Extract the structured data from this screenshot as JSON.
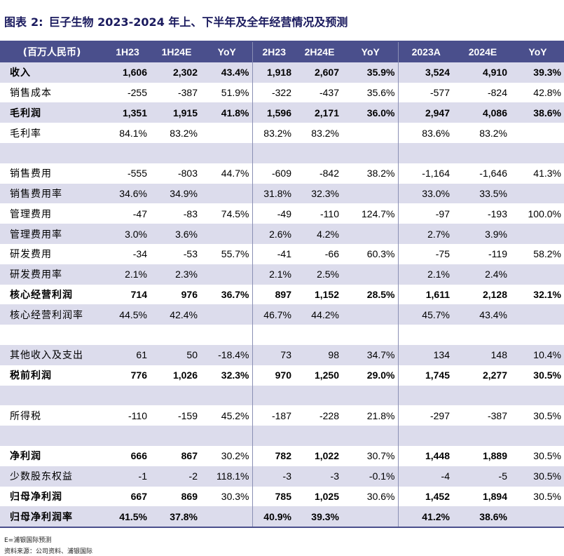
{
  "title": {
    "fig_label": "图表",
    "fig_num": "2:",
    "text": "巨子生物 2023-2024 年上、下半年及全年经营情况及预测"
  },
  "table": {
    "headers": [
      "(百万人民币)",
      "1H23",
      "1H24E",
      "YoY",
      "2H23",
      "2H24E",
      "YoY",
      "2023A",
      "2024E",
      "YoY"
    ],
    "rows": [
      {
        "label": "收入",
        "bold": true,
        "shade": true,
        "cells": [
          "1,606",
          "2,302",
          "43.4%",
          "1,918",
          "2,607",
          "35.9%",
          "3,524",
          "4,910",
          "39.3%"
        ]
      },
      {
        "label": "销售成本",
        "bold": false,
        "shade": false,
        "cells": [
          "-255",
          "-387",
          "51.9%",
          "-322",
          "-437",
          "35.6%",
          "-577",
          "-824",
          "42.8%"
        ]
      },
      {
        "label": "毛利润",
        "bold": true,
        "shade": true,
        "cells": [
          "1,351",
          "1,915",
          "41.8%",
          "1,596",
          "2,171",
          "36.0%",
          "2,947",
          "4,086",
          "38.6%"
        ]
      },
      {
        "label": "毛利率",
        "bold": false,
        "shade": false,
        "cells": [
          "84.1%",
          "83.2%",
          "",
          "83.2%",
          "83.2%",
          "",
          "83.6%",
          "83.2%",
          ""
        ]
      },
      {
        "label": "",
        "bold": false,
        "shade": true,
        "cells": [
          "",
          "",
          "",
          "",
          "",
          "",
          "",
          "",
          ""
        ]
      },
      {
        "label": "销售费用",
        "bold": false,
        "shade": false,
        "cells": [
          "-555",
          "-803",
          "44.7%",
          "-609",
          "-842",
          "38.2%",
          "-1,164",
          "-1,646",
          "41.3%"
        ]
      },
      {
        "label": "销售费用率",
        "bold": false,
        "shade": true,
        "cells": [
          "34.6%",
          "34.9%",
          "",
          "31.8%",
          "32.3%",
          "",
          "33.0%",
          "33.5%",
          ""
        ]
      },
      {
        "label": "管理费用",
        "bold": false,
        "shade": false,
        "cells": [
          "-47",
          "-83",
          "74.5%",
          "-49",
          "-110",
          "124.7%",
          "-97",
          "-193",
          "100.0%"
        ]
      },
      {
        "label": "管理费用率",
        "bold": false,
        "shade": true,
        "cells": [
          "3.0%",
          "3.6%",
          "",
          "2.6%",
          "4.2%",
          "",
          "2.7%",
          "3.9%",
          ""
        ]
      },
      {
        "label": "研发费用",
        "bold": false,
        "shade": false,
        "cells": [
          "-34",
          "-53",
          "55.7%",
          "-41",
          "-66",
          "60.3%",
          "-75",
          "-119",
          "58.2%"
        ]
      },
      {
        "label": "研发费用率",
        "bold": false,
        "shade": true,
        "cells": [
          "2.1%",
          "2.3%",
          "",
          "2.1%",
          "2.5%",
          "",
          "2.1%",
          "2.4%",
          ""
        ]
      },
      {
        "label": "核心经营利润",
        "bold": true,
        "shade": false,
        "cells": [
          "714",
          "976",
          "36.7%",
          "897",
          "1,152",
          "28.5%",
          "1,611",
          "2,128",
          "32.1%"
        ]
      },
      {
        "label": "核心经营利润率",
        "bold": false,
        "shade": true,
        "cells": [
          "44.5%",
          "42.4%",
          "",
          "46.7%",
          "44.2%",
          "",
          "45.7%",
          "43.4%",
          ""
        ]
      },
      {
        "label": "",
        "bold": false,
        "shade": false,
        "cells": [
          "",
          "",
          "",
          "",
          "",
          "",
          "",
          "",
          ""
        ]
      },
      {
        "label": "其他收入及支出",
        "bold": false,
        "shade": true,
        "cells": [
          "61",
          "50",
          "-18.4%",
          "73",
          "98",
          "34.7%",
          "134",
          "148",
          "10.4%"
        ]
      },
      {
        "label": "税前利润",
        "bold": true,
        "shade": false,
        "cells": [
          "776",
          "1,026",
          "32.3%",
          "970",
          "1,250",
          "29.0%",
          "1,745",
          "2,277",
          "30.5%"
        ]
      },
      {
        "label": "",
        "bold": false,
        "shade": true,
        "cells": [
          "",
          "",
          "",
          "",
          "",
          "",
          "",
          "",
          ""
        ]
      },
      {
        "label": "所得税",
        "bold": false,
        "shade": false,
        "cells": [
          "-110",
          "-159",
          "45.2%",
          "-187",
          "-228",
          "21.8%",
          "-297",
          "-387",
          "30.5%"
        ]
      },
      {
        "label": "",
        "bold": false,
        "shade": true,
        "cells": [
          "",
          "",
          "",
          "",
          "",
          "",
          "",
          "",
          ""
        ]
      },
      {
        "label": "净利润",
        "bold": true,
        "shade": false,
        "cells": [
          "666",
          "867",
          "30.2%",
          "782",
          "1,022",
          "30.7%",
          "1,448",
          "1,889",
          "30.5%"
        ]
      },
      {
        "label": "少数股东权益",
        "bold": false,
        "shade": true,
        "cells": [
          "-1",
          "-2",
          "118.1%",
          "-3",
          "-3",
          "-0.1%",
          "-4",
          "-5",
          "30.5%"
        ]
      },
      {
        "label": "归母净利润",
        "bold": true,
        "shade": false,
        "cells": [
          "667",
          "869",
          "30.3%",
          "785",
          "1,025",
          "30.6%",
          "1,452",
          "1,894",
          "30.5%"
        ]
      },
      {
        "label": "归母净利润率",
        "bold": true,
        "shade": true,
        "cells": [
          "41.5%",
          "37.8%",
          "",
          "40.9%",
          "39.3%",
          "",
          "41.2%",
          "38.6%",
          ""
        ]
      }
    ],
    "bold_value_exceptions": [
      [
        19,
        2
      ],
      [
        19,
        5
      ],
      [
        19,
        8
      ],
      [
        20,
        2
      ],
      [
        20,
        5
      ],
      [
        20,
        8
      ],
      [
        21,
        2
      ],
      [
        21,
        5
      ],
      [
        21,
        8
      ]
    ]
  },
  "notes": {
    "estimate": "E=浦银国际预测",
    "source": "资料来源：公司资料、浦银国际"
  },
  "colors": {
    "header_bg": "#4a4f8c",
    "shade_row": "#dcdcec",
    "title": "#1a1a5e"
  }
}
